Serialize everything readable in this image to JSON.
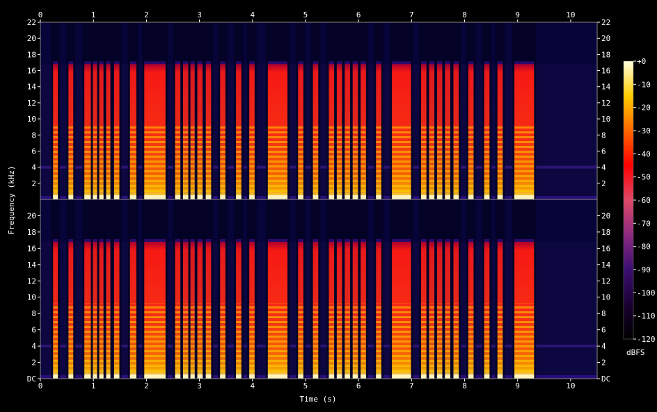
{
  "chart_data": {
    "type": "heatmap",
    "title": "",
    "xlabel": "Time (s)",
    "ylabel": "Frequency (kHz)",
    "colorbar_label": "dBFS",
    "xlim": [
      0,
      10.5
    ],
    "ylim_khz": [
      0,
      22
    ],
    "x_ticks": [
      "0",
      "1",
      "2",
      "3",
      "4",
      "5",
      "6",
      "7",
      "8",
      "9",
      "10"
    ],
    "y_ticks_upper": [
      "2",
      "4",
      "6",
      "8",
      "10",
      "12",
      "14",
      "16",
      "18",
      "20",
      "22"
    ],
    "y_ticks_lower": [
      "DC",
      "2",
      "4",
      "6",
      "8",
      "10",
      "12",
      "14",
      "16",
      "18",
      "20"
    ],
    "colorbar_ticks": [
      "+0",
      "-10",
      "-20",
      "-30",
      "-40",
      "-50",
      "-60",
      "-70",
      "-80",
      "-90",
      "-100",
      "-110",
      "-120"
    ],
    "clim_dbfs": [
      -120,
      0
    ],
    "colormap": [
      "#000000",
      "#1a0033",
      "#3b0f70",
      "#8c2981",
      "#de4968",
      "#fe0000",
      "#ff6600",
      "#ffcc00",
      "#ffffe0"
    ],
    "background_level_dbfs": -105,
    "noise_band_khz": 4,
    "lowpass_cutoff_khz": 16.8,
    "channels": [
      "upper",
      "lower"
    ],
    "notes": [
      {
        "start": 0.24,
        "end": 0.33,
        "intensity": 0.82
      },
      {
        "start": 0.53,
        "end": 0.62,
        "intensity": 0.8
      },
      {
        "start": 0.83,
        "end": 0.96,
        "intensity": 0.82
      },
      {
        "start": 0.99,
        "end": 1.07,
        "intensity": 0.78
      },
      {
        "start": 1.11,
        "end": 1.19,
        "intensity": 0.76
      },
      {
        "start": 1.24,
        "end": 1.32,
        "intensity": 0.78
      },
      {
        "start": 1.39,
        "end": 1.49,
        "intensity": 0.8
      },
      {
        "start": 1.69,
        "end": 1.81,
        "intensity": 0.82
      },
      {
        "start": 1.96,
        "end": 2.36,
        "intensity": 0.86
      },
      {
        "start": 2.54,
        "end": 2.64,
        "intensity": 0.8
      },
      {
        "start": 2.69,
        "end": 2.79,
        "intensity": 0.76
      },
      {
        "start": 2.83,
        "end": 2.91,
        "intensity": 0.74
      },
      {
        "start": 2.96,
        "end": 3.06,
        "intensity": 0.76
      },
      {
        "start": 3.12,
        "end": 3.22,
        "intensity": 0.78
      },
      {
        "start": 3.39,
        "end": 3.49,
        "intensity": 0.8
      },
      {
        "start": 3.69,
        "end": 3.79,
        "intensity": 0.8
      },
      {
        "start": 3.94,
        "end": 4.04,
        "intensity": 0.82
      },
      {
        "start": 4.29,
        "end": 4.66,
        "intensity": 0.86
      },
      {
        "start": 4.86,
        "end": 4.96,
        "intensity": 0.8
      },
      {
        "start": 5.14,
        "end": 5.24,
        "intensity": 0.8
      },
      {
        "start": 5.44,
        "end": 5.54,
        "intensity": 0.8
      },
      {
        "start": 5.59,
        "end": 5.69,
        "intensity": 0.78
      },
      {
        "start": 5.74,
        "end": 5.84,
        "intensity": 0.78
      },
      {
        "start": 5.89,
        "end": 5.99,
        "intensity": 0.76
      },
      {
        "start": 6.04,
        "end": 6.14,
        "intensity": 0.8
      },
      {
        "start": 6.33,
        "end": 6.43,
        "intensity": 0.8
      },
      {
        "start": 6.63,
        "end": 6.99,
        "intensity": 0.86
      },
      {
        "start": 7.18,
        "end": 7.28,
        "intensity": 0.8
      },
      {
        "start": 7.33,
        "end": 7.43,
        "intensity": 0.76
      },
      {
        "start": 7.48,
        "end": 7.58,
        "intensity": 0.74
      },
      {
        "start": 7.63,
        "end": 7.73,
        "intensity": 0.76
      },
      {
        "start": 7.79,
        "end": 7.89,
        "intensity": 0.78
      },
      {
        "start": 8.07,
        "end": 8.17,
        "intensity": 0.8
      },
      {
        "start": 8.37,
        "end": 8.47,
        "intensity": 0.8
      },
      {
        "start": 8.62,
        "end": 8.72,
        "intensity": 0.8
      },
      {
        "start": 8.94,
        "end": 9.31,
        "intensity": 0.86
      }
    ]
  }
}
